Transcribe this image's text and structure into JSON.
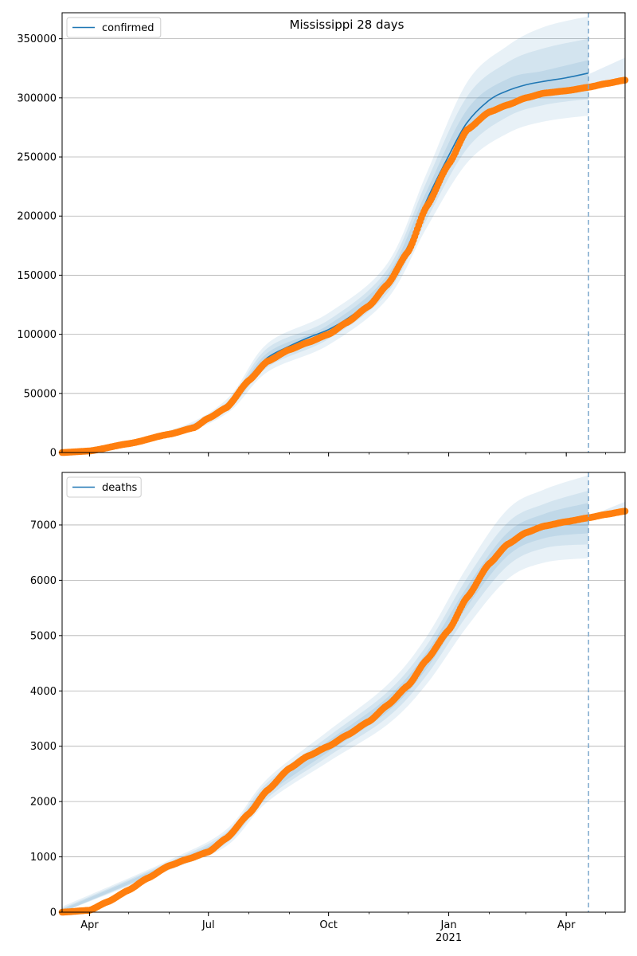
{
  "chart_data": [
    {
      "type": "line",
      "title": "Mississippi 28 days",
      "xlabel": "",
      "ylabel": "",
      "ylim": [
        0,
        372000
      ],
      "y_ticks": [
        0,
        50000,
        100000,
        150000,
        200000,
        250000,
        300000,
        350000
      ],
      "x_range": [
        "2020-03-11",
        "2021-05-16"
      ],
      "x_ticks": [
        {
          "date": "2020-04-01",
          "label": "Apr"
        },
        {
          "date": "2020-07-01",
          "label": "Jul"
        },
        {
          "date": "2020-10-01",
          "label": "Oct"
        },
        {
          "date": "2021-01-01",
          "label": "Jan",
          "sublabel": "2021"
        },
        {
          "date": "2021-04-01",
          "label": "Apr"
        }
      ],
      "grid": "y",
      "legend": {
        "placement": "top-left",
        "entries": [
          "confirmed"
        ]
      },
      "forecast_start": "2021-04-18",
      "colors": {
        "fit": "#1f77b4",
        "observed": "#ff7f0e",
        "band": "#1f77b4"
      },
      "series": [
        {
          "name": "confirmed",
          "kind": "fit-line",
          "x": [
            "2020-03-11",
            "2020-04-01",
            "2020-05-01",
            "2020-06-01",
            "2020-06-20",
            "2020-07-01",
            "2020-07-15",
            "2020-08-01",
            "2020-08-15",
            "2020-09-01",
            "2020-09-15",
            "2020-10-01",
            "2020-10-15",
            "2020-11-01",
            "2020-11-15",
            "2020-12-01",
            "2020-12-15",
            "2021-01-01",
            "2021-01-15",
            "2021-02-01",
            "2021-02-15",
            "2021-03-01",
            "2021-03-15",
            "2021-04-01",
            "2021-04-18"
          ],
          "y": [
            0,
            1500,
            8000,
            16000,
            22000,
            29000,
            39000,
            63000,
            80000,
            90000,
            97000,
            104000,
            113000,
            127000,
            145000,
            175000,
            213000,
            251000,
            279000,
            298000,
            306000,
            311000,
            314000,
            317000,
            321000
          ]
        },
        {
          "name": "",
          "kind": "observed-points",
          "x": [
            "2020-03-11",
            "2020-04-01",
            "2020-05-01",
            "2020-06-01",
            "2020-06-20",
            "2020-07-01",
            "2020-07-15",
            "2020-08-01",
            "2020-08-15",
            "2020-09-01",
            "2020-09-15",
            "2020-10-01",
            "2020-10-15",
            "2020-11-01",
            "2020-11-15",
            "2020-12-01",
            "2020-12-15",
            "2021-01-01",
            "2021-01-15",
            "2021-02-01",
            "2021-02-15",
            "2021-03-01",
            "2021-03-15",
            "2021-04-01",
            "2021-04-18",
            "2021-05-01",
            "2021-05-16"
          ],
          "y": [
            0,
            1300,
            7500,
            15500,
            21000,
            29000,
            38000,
            61000,
            77000,
            87000,
            93000,
            100000,
            110000,
            124000,
            142000,
            170000,
            208000,
            244000,
            273000,
            288000,
            294000,
            300000,
            304000,
            306000,
            309000,
            312000,
            315000
          ]
        }
      ],
      "bands": [
        {
          "x": [
            "2020-03-11",
            "2020-06-01",
            "2020-07-15",
            "2020-08-15",
            "2020-10-01",
            "2020-11-15",
            "2020-12-15",
            "2021-01-15",
            "2021-02-15",
            "2021-03-15",
            "2021-04-18"
          ],
          "lower": [
            0,
            13500,
            33000,
            68000,
            91000,
            130000,
            190000,
            245000,
            270000,
            280000,
            285000
          ],
          "upper": [
            0,
            18500,
            45000,
            92000,
            118000,
            160000,
            236000,
            313000,
            344000,
            360000,
            369000
          ]
        },
        {
          "x": [
            "2020-03-11",
            "2020-06-01",
            "2020-07-15",
            "2020-08-15",
            "2020-10-01",
            "2020-11-15",
            "2020-12-15",
            "2021-01-15",
            "2021-02-15",
            "2021-03-15",
            "2021-04-18"
          ],
          "lower": [
            0,
            14500,
            35500,
            72000,
            96000,
            135000,
            197000,
            257000,
            284000,
            294000,
            299000
          ],
          "upper": [
            0,
            17500,
            42500,
            88000,
            112000,
            155000,
            229000,
            301000,
            330000,
            342000,
            350000
          ]
        },
        {
          "x": [
            "2020-03-11",
            "2020-06-01",
            "2020-07-15",
            "2020-08-15",
            "2020-10-01",
            "2020-11-15",
            "2020-12-15",
            "2021-01-15",
            "2021-02-15",
            "2021-03-15",
            "2021-04-18"
          ],
          "lower": [
            0,
            15300,
            37500,
            76000,
            100000,
            140000,
            205000,
            268000,
            296000,
            305000,
            310000
          ],
          "upper": [
            0,
            16700,
            40500,
            84000,
            108000,
            150000,
            221000,
            290000,
            316000,
            323000,
            332000
          ]
        }
      ],
      "tail_band": {
        "x": [
          "2021-04-18",
          "2021-05-16"
        ],
        "lower": [
          309000,
          312000
        ],
        "upper": [
          320000,
          334000
        ]
      }
    },
    {
      "type": "line",
      "title": "",
      "xlabel": "",
      "ylabel": "",
      "ylim": [
        0,
        7950
      ],
      "y_ticks": [
        0,
        1000,
        2000,
        3000,
        4000,
        5000,
        6000,
        7000
      ],
      "x_range": [
        "2020-03-11",
        "2021-05-16"
      ],
      "x_ticks": [
        {
          "date": "2020-04-01",
          "label": "Apr"
        },
        {
          "date": "2020-07-01",
          "label": "Jul"
        },
        {
          "date": "2020-10-01",
          "label": "Oct"
        },
        {
          "date": "2021-01-01",
          "label": "Jan",
          "sublabel": "2021"
        },
        {
          "date": "2021-04-01",
          "label": "Apr"
        }
      ],
      "grid": "y",
      "legend": {
        "placement": "top-left",
        "entries": [
          "deaths"
        ]
      },
      "forecast_start": "2021-04-18",
      "colors": {
        "fit": "#1f77b4",
        "observed": "#ff7f0e",
        "band": "#1f77b4"
      },
      "series": [
        {
          "name": "deaths",
          "kind": "fit-line",
          "x": [
            "2020-03-11",
            "2020-04-01",
            "2020-04-15",
            "2020-05-01",
            "2020-05-15",
            "2020-06-01",
            "2020-06-15",
            "2020-07-01",
            "2020-07-15",
            "2020-08-01",
            "2020-08-15",
            "2020-09-01",
            "2020-09-15",
            "2020-10-01",
            "2020-10-15",
            "2020-11-01",
            "2020-11-15",
            "2020-12-01",
            "2020-12-15",
            "2021-01-01",
            "2021-01-15",
            "2021-02-01",
            "2021-02-15",
            "2021-03-01",
            "2021-03-15",
            "2021-04-01",
            "2021-04-18"
          ],
          "y": [
            0,
            40,
            200,
            400,
            620,
            850,
            970,
            1100,
            1350,
            1800,
            2200,
            2600,
            2820,
            3000,
            3200,
            3450,
            3750,
            4100,
            4550,
            5100,
            5700,
            6300,
            6650,
            6850,
            6980,
            7070,
            7120
          ]
        },
        {
          "name": "",
          "kind": "observed-points",
          "x": [
            "2020-03-11",
            "2020-04-01",
            "2020-04-15",
            "2020-05-01",
            "2020-05-15",
            "2020-06-01",
            "2020-06-15",
            "2020-07-01",
            "2020-07-15",
            "2020-08-01",
            "2020-08-15",
            "2020-09-01",
            "2020-09-15",
            "2020-10-01",
            "2020-10-15",
            "2020-11-01",
            "2020-11-15",
            "2020-12-01",
            "2020-12-15",
            "2021-01-01",
            "2021-01-15",
            "2021-02-01",
            "2021-02-15",
            "2021-03-01",
            "2021-03-15",
            "2021-04-01",
            "2021-04-18",
            "2021-05-01",
            "2021-05-16"
          ],
          "y": [
            0,
            35,
            190,
            400,
            610,
            840,
            960,
            1090,
            1340,
            1780,
            2200,
            2600,
            2820,
            3000,
            3200,
            3450,
            3740,
            4100,
            4560,
            5100,
            5690,
            6300,
            6650,
            6860,
            6980,
            7060,
            7130,
            7190,
            7250
          ]
        }
      ],
      "bands": [
        {
          "x": [
            "2020-03-11",
            "2020-06-01",
            "2020-07-15",
            "2020-08-15",
            "2020-10-01",
            "2020-11-15",
            "2020-12-15",
            "2021-01-15",
            "2021-02-15",
            "2021-03-15",
            "2021-04-18"
          ],
          "lower": [
            0,
            760,
            1200,
            1990,
            2720,
            3390,
            4120,
            5160,
            6020,
            6320,
            6400
          ],
          "upper": [
            100,
            940,
            1500,
            2410,
            3280,
            4110,
            4980,
            6240,
            7280,
            7640,
            7900
          ]
        },
        {
          "x": [
            "2020-03-11",
            "2020-06-01",
            "2020-07-15",
            "2020-08-15",
            "2020-10-01",
            "2020-11-15",
            "2020-12-15",
            "2021-01-15",
            "2021-02-15",
            "2021-03-15",
            "2021-04-18"
          ],
          "lower": [
            0,
            790,
            1250,
            2060,
            2820,
            3520,
            4280,
            5360,
            6260,
            6580,
            6650
          ],
          "upper": [
            70,
            910,
            1450,
            2340,
            3180,
            3980,
            4820,
            6040,
            7040,
            7380,
            7620
          ]
        },
        {
          "x": [
            "2020-03-11",
            "2020-06-01",
            "2020-07-15",
            "2020-08-15",
            "2020-10-01",
            "2020-11-15",
            "2020-12-15",
            "2021-01-15",
            "2021-02-15",
            "2021-03-15",
            "2021-04-18"
          ],
          "lower": [
            0,
            815,
            1300,
            2120,
            2900,
            3620,
            4400,
            5520,
            6440,
            6760,
            6850
          ],
          "upper": [
            50,
            885,
            1400,
            2280,
            3100,
            3880,
            4700,
            5880,
            6860,
            7200,
            7400
          ]
        }
      ],
      "tail_band": {
        "x": [
          "2021-04-18",
          "2021-05-16"
        ],
        "lower": [
          7130,
          7230
        ],
        "upper": [
          7150,
          7420
        ]
      }
    }
  ]
}
